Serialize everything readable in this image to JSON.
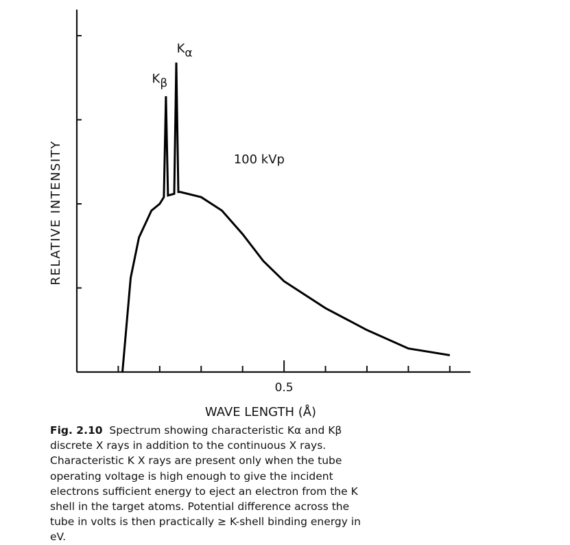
{
  "chart_data": {
    "type": "line",
    "title": "",
    "xlabel": "WAVE LENGTH (Å)",
    "ylabel": "RELATIVE  INTENSITY",
    "x_tick_labels": [
      {
        "x": 0.5,
        "label": "0.5"
      }
    ],
    "xlim": [
      0.0,
      0.95
    ],
    "ylim": [
      0,
      100
    ],
    "grid": false,
    "annotations": [
      {
        "text": "100  kVp",
        "x": 0.44,
        "y": 62
      },
      {
        "text": "Kβ",
        "x": 0.2,
        "y": 86
      },
      {
        "text": "Kα",
        "x": 0.26,
        "y": 95
      }
    ],
    "series": [
      {
        "values_x": [
          0.11,
          0.13,
          0.15,
          0.18,
          0.2,
          0.21,
          0.215,
          0.22,
          0.235,
          0.24,
          0.245,
          0.25,
          0.3,
          0.35,
          0.4,
          0.45,
          0.5,
          0.6,
          0.7,
          0.8,
          0.9
        ],
        "values_y": [
          0,
          28,
          40,
          48,
          50,
          52,
          82,
          52.5,
          53,
          92,
          53.5,
          53.5,
          52,
          48,
          41,
          33,
          27,
          19,
          12.5,
          7,
          5
        ]
      }
    ]
  },
  "caption": {
    "figure_label": "Fig.  2.10",
    "lines": [
      "Spectrum showing characteristic Kα and Kβ discrete",
      "X rays in addition to the continuous X rays. Characteristic K X",
      "rays are present only when the tube operating voltage is high",
      "enough to give the incident electrons sufficient energy to eject",
      "an electron from the K shell in the target atoms. Potential",
      "difference across the tube in volts is then practically ≥ K-shell",
      "binding energy in eV."
    ]
  }
}
